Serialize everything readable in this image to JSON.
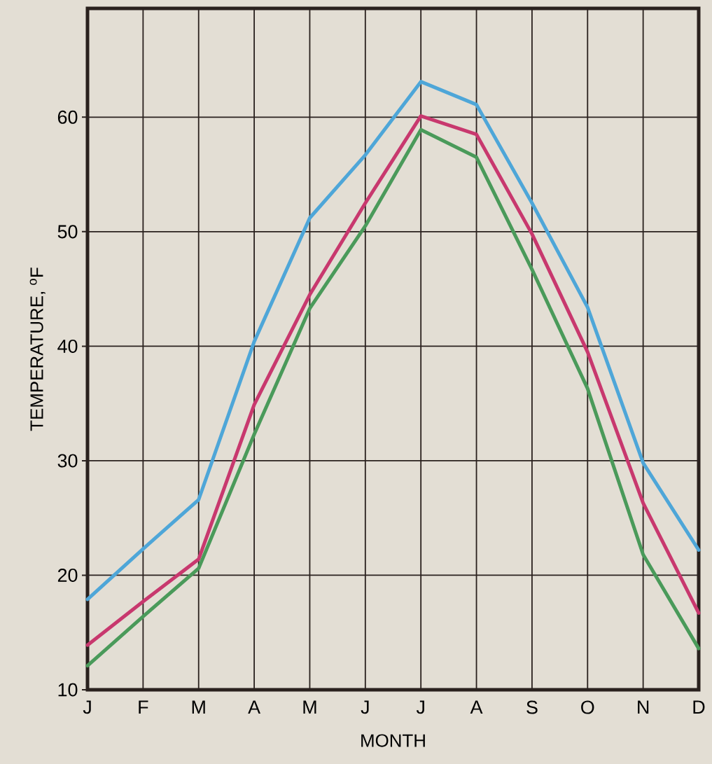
{
  "chart_data": {
    "type": "line",
    "xlabel": "MONTH",
    "ylabel": "TEMPERATURE, $^{o}$F",
    "categories": [
      "J",
      "F",
      "M",
      "A",
      "M",
      "J",
      "J",
      "A",
      "S",
      "O",
      "N",
      "D"
    ],
    "series": [
      {
        "color": "#4ea6d8",
        "values": [
          17.9,
          22.3,
          26.6,
          40.4,
          51.2,
          56.7,
          63.1,
          61.1,
          52.5,
          43.4,
          29.8,
          22.2
        ]
      },
      {
        "color": "#c8386e",
        "values": [
          13.9,
          17.7,
          21.4,
          34.9,
          44.5,
          52.5,
          60.1,
          58.5,
          49.8,
          39.5,
          26.3,
          16.7
        ]
      },
      {
        "color": "#4a9a5a",
        "values": [
          12.1,
          16.4,
          20.6,
          32.3,
          43.3,
          50.5,
          58.9,
          56.5,
          46.7,
          36.3,
          21.8,
          13.6
        ]
      }
    ],
    "ylim": [
      10,
      69.5
    ],
    "yticks": [
      10,
      20,
      30,
      40,
      50,
      60
    ],
    "grid": true,
    "marker": "none",
    "line_style": "solid"
  }
}
